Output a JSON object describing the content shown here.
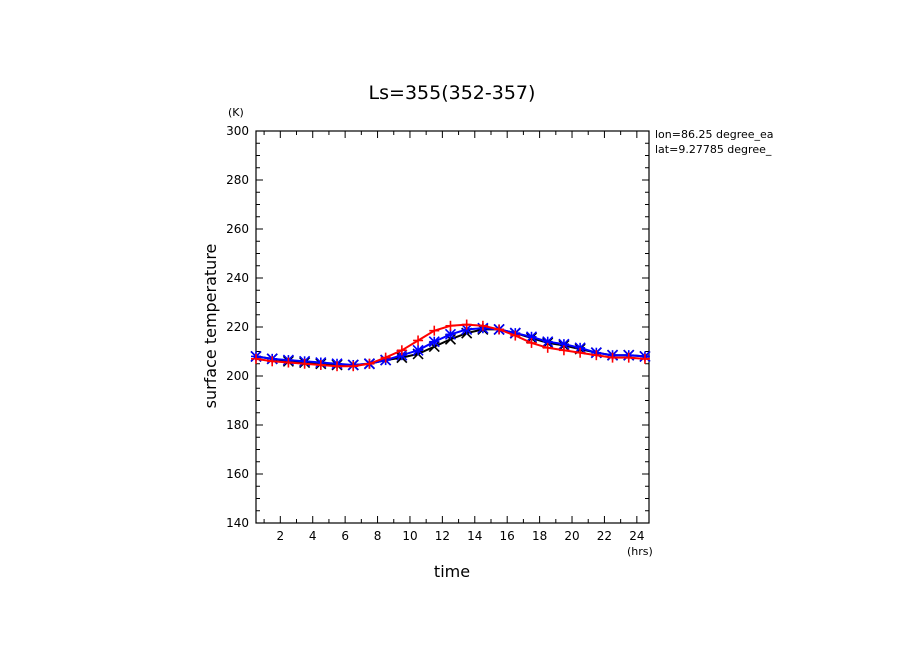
{
  "chart_data": {
    "type": "line",
    "title": "Ls=355(352-357)",
    "xlabel": "time",
    "ylabel": "surface temperature",
    "x_unit": "(hrs)",
    "y_unit": "(K)",
    "annotations": [
      "lon=86.25 degree_ea",
      "lat=9.27785 degree_"
    ],
    "xlim": [
      0.5,
      24.75
    ],
    "ylim": [
      140,
      300
    ],
    "x_ticks": [
      2,
      4,
      6,
      8,
      10,
      12,
      14,
      16,
      18,
      20,
      22,
      24
    ],
    "y_ticks": [
      140,
      160,
      180,
      200,
      220,
      240,
      260,
      280,
      300
    ],
    "grid": false,
    "legend": "none",
    "x": [
      0.5,
      1.5,
      2.5,
      3.5,
      4.5,
      5.5,
      6.5,
      7.5,
      8.5,
      9.5,
      10.5,
      11.5,
      12.5,
      13.5,
      14.5,
      15.5,
      16.5,
      17.5,
      18.5,
      19.5,
      20.5,
      21.5,
      22.5,
      23.5,
      24.5,
      24.75
    ],
    "series": [
      {
        "color": "#000000",
        "marker": "x",
        "values": [
          208,
          207,
          206,
          205.5,
          205,
          204.5,
          204.5,
          205,
          206.5,
          207.5,
          209,
          212,
          215,
          217.5,
          219,
          219,
          217.5,
          215.5,
          213.5,
          212.5,
          211,
          209.5,
          208.5,
          208.5,
          208,
          208
        ]
      },
      {
        "color": "#0000ff",
        "marker": "star",
        "values": [
          208,
          207,
          206.5,
          206,
          205.5,
          205,
          204.5,
          205,
          206.5,
          208.5,
          210.5,
          214,
          217,
          219,
          219.5,
          219,
          217.5,
          216,
          214,
          213,
          211.5,
          209.5,
          208.5,
          208.5,
          208,
          208
        ]
      },
      {
        "color": "#ff0000",
        "marker": "plus",
        "values": [
          207,
          206,
          205.5,
          205,
          204.5,
          204,
          204,
          205,
          207.5,
          210.5,
          214.5,
          218.5,
          220.5,
          221,
          220.5,
          219,
          216.5,
          213.5,
          211.5,
          210.5,
          209.5,
          208.5,
          207.5,
          207.5,
          207,
          207
        ]
      }
    ]
  }
}
